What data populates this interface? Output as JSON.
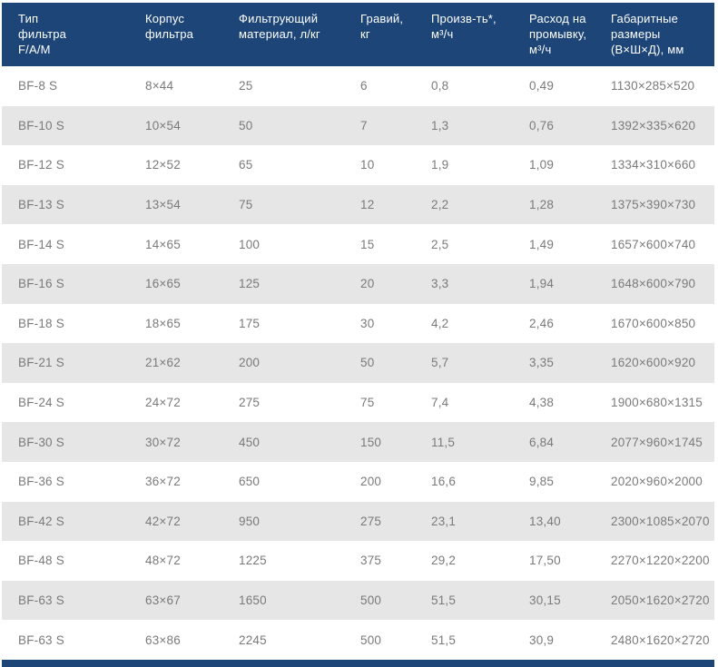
{
  "colors": {
    "header_background": "#1d4578",
    "header_text": "#ffffff",
    "row_text": "#7a7a7a",
    "stripe_background": "#e6e6e6",
    "row_background": "#ffffff",
    "footer_bar": "#1d4578"
  },
  "chart_data": {
    "type": "table",
    "columns": [
      "Тип\nфильтра\nF/A/M",
      "Корпус\nфильтра",
      "Фильтрующий\nматериал, л/кг",
      "Гравий,\nкг",
      "Произв-ть*,\nм³/ч",
      "Расход на\nпромывку,\nм³/ч",
      "Габаритные\nразмеры\n(В×Ш×Д), мм"
    ],
    "rows": [
      [
        "BF-8 S",
        "8×44",
        "25",
        "6",
        "0,8",
        "0,49",
        "1130×285×520"
      ],
      [
        "BF-10 S",
        "10×54",
        "50",
        "7",
        "1,3",
        "0,76",
        "1392×335×620"
      ],
      [
        "BF-12 S",
        "12×52",
        "65",
        "10",
        "1,9",
        "1,09",
        "1334×310×660"
      ],
      [
        "BF-13 S",
        "13×54",
        "75",
        "12",
        "2,2",
        "1,28",
        "1375×390×730"
      ],
      [
        "BF-14 S",
        "14×65",
        "100",
        "15",
        "2,5",
        "1,49",
        "1657×600×740"
      ],
      [
        "BF-16 S",
        "16×65",
        "125",
        "20",
        "3,3",
        "1,94",
        "1648×600×790"
      ],
      [
        "BF-18 S",
        "18×65",
        "175",
        "30",
        "4,2",
        "2,46",
        "1670×600×850"
      ],
      [
        "BF-21 S",
        "21×62",
        "200",
        "50",
        "5,7",
        "3,35",
        "1620×600×920"
      ],
      [
        "BF-24 S",
        "24×72",
        "275",
        "75",
        "7,4",
        "4,38",
        "1900×680×1315"
      ],
      [
        "BF-30 S",
        "30×72",
        "450",
        "150",
        "11,5",
        "6,84",
        "2077×960×1745"
      ],
      [
        "BF-36 S",
        "36×72",
        "650",
        "200",
        "16,6",
        "9,85",
        "2020×960×2000"
      ],
      [
        "BF-42 S",
        "42×72",
        "950",
        "275",
        "23,1",
        "13,40",
        "2300×1085×2070"
      ],
      [
        "BF-48 S",
        "48×72",
        "1225",
        "375",
        "29,2",
        "17,50",
        "2270×1220×2200"
      ],
      [
        "BF-63 S",
        "63×67",
        "1650",
        "500",
        "51,5",
        "30,15",
        "2050×1620×2720"
      ],
      [
        "BF-63 S",
        "63×86",
        "2245",
        "500",
        "51,5",
        "30,9",
        "2480×1620×2720"
      ]
    ]
  }
}
